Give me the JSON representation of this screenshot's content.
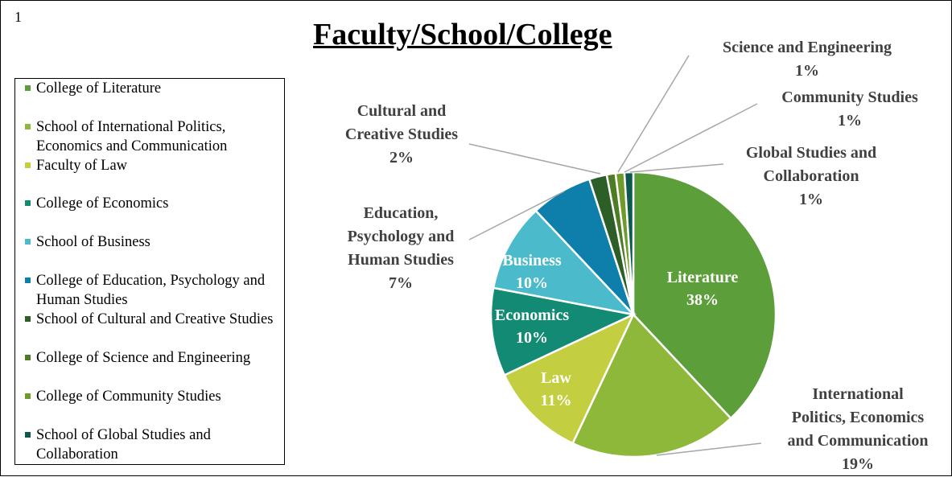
{
  "page_number": "1",
  "chart_data": {
    "type": "pie",
    "title": "Faculty/School/College",
    "slices": [
      {
        "short": "Literature",
        "value": 38,
        "label": "38%",
        "color": "#5B9E3A",
        "legend": "College of Literature",
        "inside": true
      },
      {
        "short": "International Politics, Economics and Communication",
        "value": 19,
        "label": "19%",
        "color": "#8DB83A",
        "legend": "School of International Politics, Economics and Communication",
        "inside": false,
        "lines": [
          "International",
          "Politics, Economics",
          "and Communication"
        ]
      },
      {
        "short": "Law",
        "value": 11,
        "label": "11%",
        "color": "#C3CF40",
        "legend": "Faculty of Law",
        "inside": true
      },
      {
        "short": "Economics",
        "value": 10,
        "label": "10%",
        "color": "#138A73",
        "legend": "College of Economics",
        "inside": true
      },
      {
        "short": "Business",
        "value": 10,
        "label": "10%",
        "color": "#4BBACB",
        "legend": "School of Business",
        "inside": true
      },
      {
        "short": "Education, Psychology and Human Studies",
        "value": 7,
        "label": "7%",
        "color": "#0E7FAB",
        "legend": "College of Education, Psychology and Human Studies",
        "inside": false,
        "lines": [
          "Education,",
          "Psychology and",
          "Human Studies"
        ]
      },
      {
        "short": "Cultural and Creative Studies",
        "value": 2,
        "label": "2%",
        "color": "#2D5E28",
        "legend": "School of Cultural and Creative Studies",
        "inside": false,
        "lines": [
          "Cultural and",
          "Creative Studies"
        ]
      },
      {
        "short": "Science and Engineering",
        "value": 1,
        "label": "1%",
        "color": "#4C7D24",
        "legend": "College of Science and Engineering",
        "inside": false,
        "lines": [
          "Science and Engineering"
        ]
      },
      {
        "short": "Community Studies",
        "value": 1,
        "label": "1%",
        "color": "#6F9B2A",
        "legend": "College of Community Studies",
        "inside": false,
        "lines": [
          "Community Studies"
        ]
      },
      {
        "short": "Global Studies and Collaboration",
        "value": 1,
        "label": "1%",
        "color": "#0D5A4C",
        "legend": "School of Global Studies and Collaboration",
        "inside": false,
        "lines": [
          "Global Studies and",
          "Collaboration"
        ]
      }
    ],
    "legend_position": "left"
  }
}
